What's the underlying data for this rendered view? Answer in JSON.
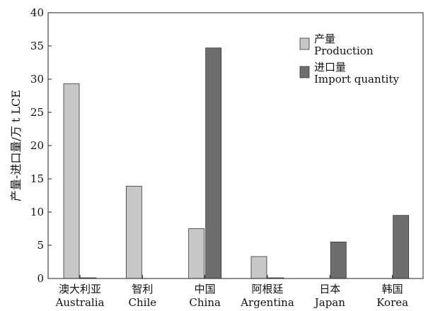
{
  "chart_data": {
    "type": "bar",
    "ylabel": "产量-进口量/万 t LCE",
    "ylim": [
      0,
      40
    ],
    "yticks": [
      0,
      5,
      10,
      15,
      20,
      25,
      30,
      35,
      40
    ],
    "grid": false,
    "legend_position": "top-right",
    "categories": [
      {
        "zh": "澳大利亚",
        "en": "Australia"
      },
      {
        "zh": "智利",
        "en": "Chile"
      },
      {
        "zh": "中国",
        "en": "China"
      },
      {
        "zh": "阿根廷",
        "en": "Argentina"
      },
      {
        "zh": "日本",
        "en": "Japan"
      },
      {
        "zh": "韩国",
        "en": "Korea"
      }
    ],
    "series": [
      {
        "name_zh": "产量",
        "name_en": "Production",
        "color": "#c8c8c8",
        "values": [
          29.3,
          13.9,
          7.5,
          3.3,
          0,
          0
        ]
      },
      {
        "name_zh": "进口量",
        "name_en": "Import quantity",
        "color": "#6e6e6e",
        "values": [
          0.1,
          0,
          34.7,
          0.1,
          5.5,
          9.5
        ]
      }
    ]
  }
}
